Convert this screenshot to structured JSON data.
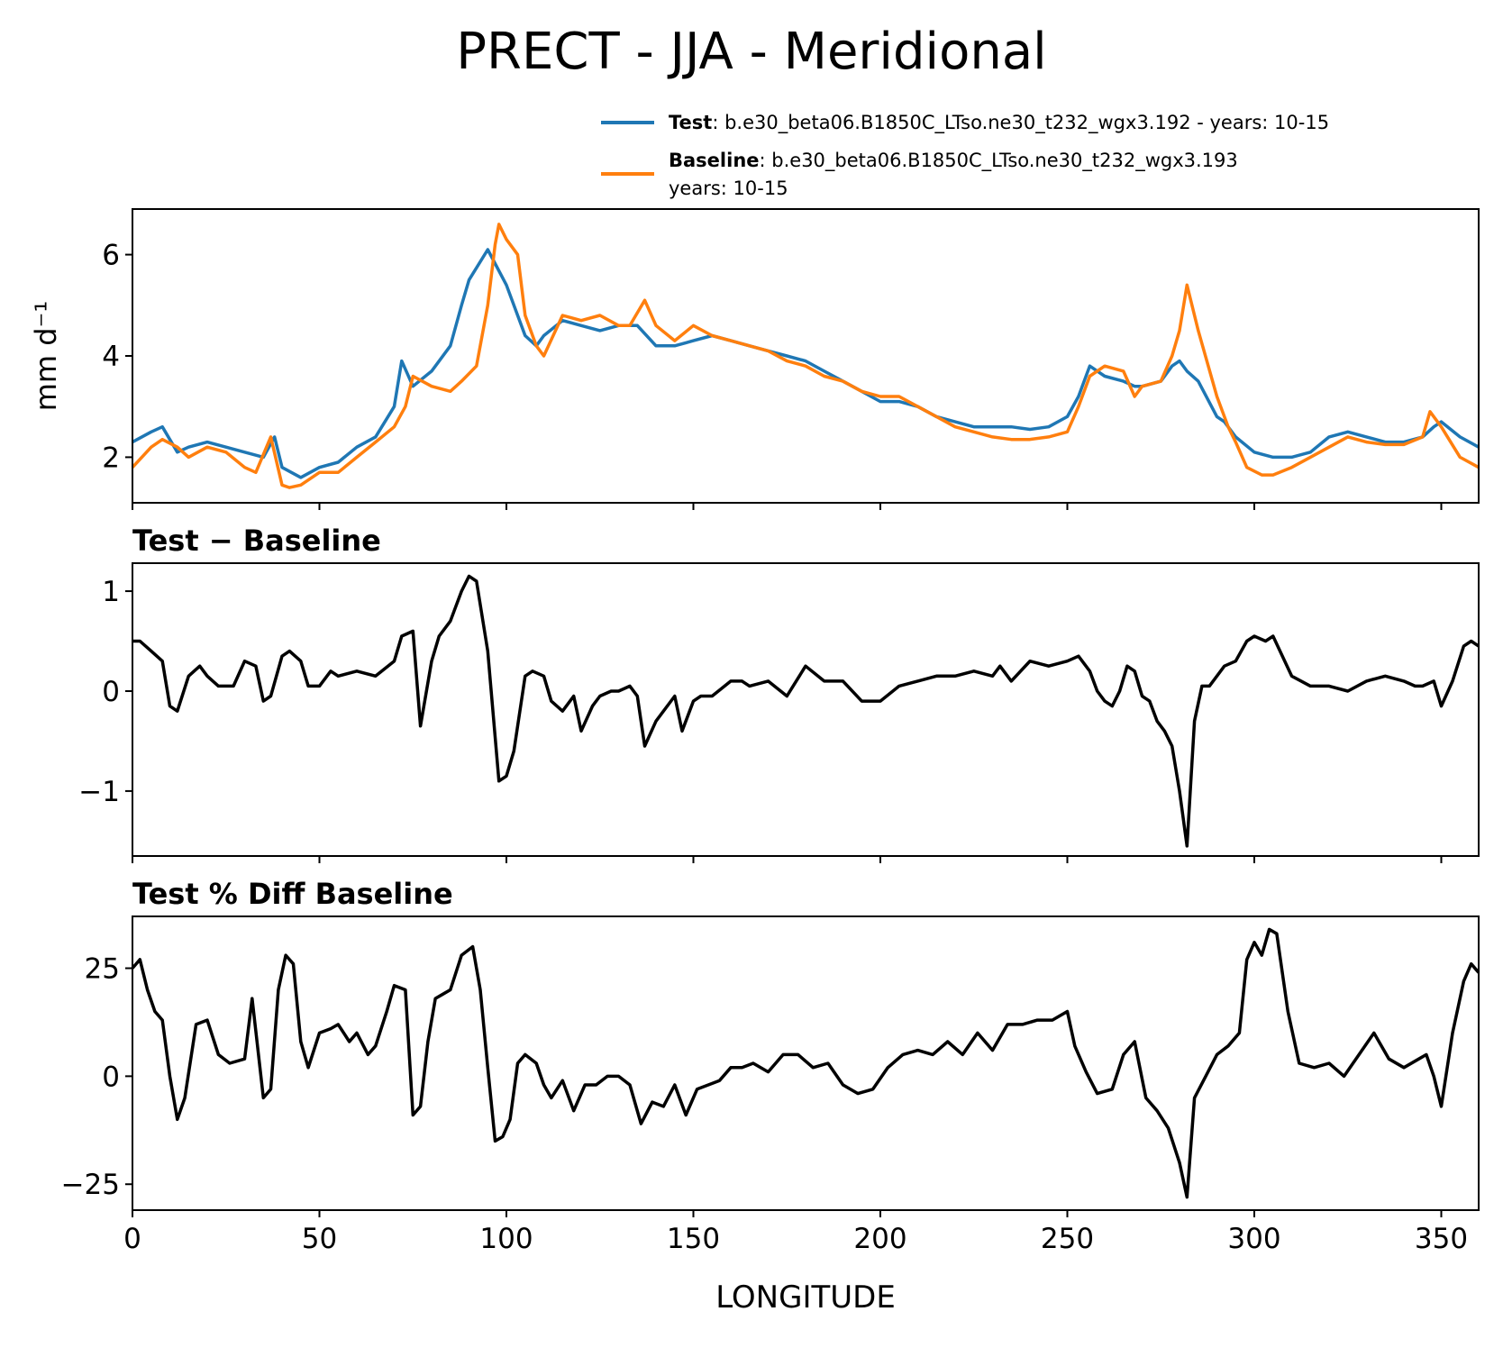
{
  "chart_data": {
    "title": "PRECT - JJA - Meridional",
    "xlabel": "LONGITUDE",
    "xlim": [
      0,
      360
    ],
    "xticks": [
      0,
      50,
      100,
      150,
      200,
      250,
      300,
      350
    ],
    "xtick_labels": [
      "0",
      "50",
      "100",
      "150",
      "200",
      "250",
      "300",
      "350"
    ],
    "colors": {
      "test": "#1f77b4",
      "baseline": "#ff7f0e",
      "diff": "#000000"
    },
    "legend": {
      "test_label": "Test",
      "test_text": ": b.e30_beta06.B1850C_LTso.ne30_t232_wgx3.192 - years: 10-15",
      "baseline_label": "Baseline",
      "baseline_text": ": b.e30_beta06.B1850C_LTso.ne30_t232_wgx3.193",
      "baseline_text2": "years: 10-15",
      "placement": "top-right above first panel"
    },
    "panels": [
      {
        "type": "line",
        "title": "",
        "ylabel": "mm d⁻¹",
        "ylim": [
          1.1,
          6.9
        ],
        "yticks": [
          2,
          4,
          6
        ],
        "ytick_labels": [
          "2",
          "4",
          "6"
        ],
        "series": [
          {
            "name": "Test",
            "x": [
              0,
              5,
              8,
              12,
              15,
              20,
              25,
              30,
              35,
              38,
              40,
              45,
              50,
              55,
              60,
              65,
              70,
              72,
              75,
              80,
              85,
              88,
              90,
              95,
              100,
              105,
              108,
              110,
              115,
              120,
              125,
              130,
              135,
              140,
              145,
              150,
              155,
              160,
              165,
              170,
              175,
              180,
              185,
              190,
              195,
              200,
              205,
              210,
              215,
              220,
              225,
              230,
              235,
              240,
              245,
              250,
              253,
              256,
              260,
              265,
              268,
              270,
              275,
              278,
              280,
              282,
              285,
              290,
              292,
              295,
              300,
              305,
              310,
              315,
              320,
              325,
              330,
              335,
              340,
              345,
              348,
              350,
              355,
              360
            ],
            "values": [
              2.3,
              2.5,
              2.6,
              2.1,
              2.2,
              2.3,
              2.2,
              2.1,
              2.0,
              2.4,
              1.8,
              1.6,
              1.8,
              1.9,
              2.2,
              2.4,
              3.0,
              3.9,
              3.4,
              3.7,
              4.2,
              5.0,
              5.5,
              6.1,
              5.4,
              4.4,
              4.2,
              4.4,
              4.7,
              4.6,
              4.5,
              4.6,
              4.6,
              4.2,
              4.2,
              4.3,
              4.4,
              4.3,
              4.2,
              4.1,
              4.0,
              3.9,
              3.7,
              3.5,
              3.3,
              3.1,
              3.1,
              3.0,
              2.8,
              2.7,
              2.6,
              2.6,
              2.6,
              2.55,
              2.6,
              2.8,
              3.2,
              3.8,
              3.6,
              3.5,
              3.4,
              3.4,
              3.5,
              3.8,
              3.9,
              3.7,
              3.5,
              2.8,
              2.7,
              2.4,
              2.1,
              2.0,
              2.0,
              2.1,
              2.4,
              2.5,
              2.4,
              2.3,
              2.3,
              2.4,
              2.6,
              2.7,
              2.4,
              2.2
            ]
          },
          {
            "name": "Baseline",
            "x": [
              0,
              5,
              8,
              12,
              15,
              20,
              25,
              30,
              33,
              37,
              40,
              42,
              45,
              50,
              55,
              60,
              65,
              70,
              73,
              75,
              80,
              85,
              88,
              92,
              95,
              97,
              98,
              100,
              103,
              105,
              108,
              110,
              115,
              120,
              125,
              130,
              133,
              137,
              140,
              145,
              150,
              155,
              160,
              165,
              170,
              175,
              180,
              185,
              190,
              195,
              200,
              205,
              210,
              215,
              220,
              225,
              230,
              235,
              240,
              245,
              250,
              253,
              256,
              260,
              265,
              268,
              270,
              275,
              278,
              280,
              282,
              285,
              290,
              293,
              295,
              298,
              302,
              305,
              310,
              315,
              320,
              325,
              330,
              335,
              340,
              345,
              347,
              350,
              355,
              360
            ],
            "values": [
              1.8,
              2.2,
              2.35,
              2.2,
              2.0,
              2.2,
              2.1,
              1.8,
              1.7,
              2.4,
              1.45,
              1.4,
              1.45,
              1.7,
              1.7,
              2.0,
              2.3,
              2.6,
              3.0,
              3.6,
              3.4,
              3.3,
              3.5,
              3.8,
              5.0,
              6.2,
              6.6,
              6.3,
              6.0,
              4.8,
              4.2,
              4.0,
              4.8,
              4.7,
              4.8,
              4.6,
              4.6,
              5.1,
              4.6,
              4.3,
              4.6,
              4.4,
              4.3,
              4.2,
              4.1,
              3.9,
              3.8,
              3.6,
              3.5,
              3.3,
              3.2,
              3.2,
              3.0,
              2.8,
              2.6,
              2.5,
              2.4,
              2.35,
              2.35,
              2.4,
              2.5,
              3.0,
              3.6,
              3.8,
              3.7,
              3.2,
              3.4,
              3.5,
              4.0,
              4.5,
              5.4,
              4.5,
              3.2,
              2.6,
              2.3,
              1.8,
              1.65,
              1.65,
              1.8,
              2.0,
              2.2,
              2.4,
              2.3,
              2.25,
              2.25,
              2.4,
              2.9,
              2.6,
              2.0,
              1.8
            ]
          }
        ]
      },
      {
        "type": "line",
        "title": "Test − Baseline",
        "ylabel": "",
        "ylim": [
          -1.65,
          1.28
        ],
        "yticks": [
          -1,
          0,
          1
        ],
        "ytick_labels": [
          "−1",
          "0",
          "1"
        ],
        "series": [
          {
            "name": "Test − Baseline",
            "x": [
              0,
              2,
              5,
              8,
              10,
              12,
              15,
              18,
              20,
              23,
              27,
              30,
              33,
              35,
              37,
              40,
              42,
              45,
              47,
              50,
              53,
              55,
              60,
              65,
              70,
              72,
              75,
              77,
              80,
              82,
              85,
              88,
              90,
              92,
              95,
              98,
              100,
              102,
              105,
              107,
              110,
              112,
              115,
              118,
              120,
              123,
              125,
              128,
              130,
              133,
              135,
              137,
              140,
              145,
              147,
              150,
              152,
              155,
              160,
              163,
              165,
              170,
              175,
              180,
              185,
              190,
              195,
              200,
              205,
              210,
              215,
              220,
              225,
              230,
              232,
              235,
              240,
              245,
              250,
              253,
              256,
              258,
              260,
              262,
              264,
              266,
              268,
              270,
              272,
              274,
              276,
              278,
              280,
              282,
              284,
              286,
              288,
              290,
              292,
              295,
              298,
              300,
              303,
              305,
              310,
              315,
              320,
              325,
              330,
              335,
              340,
              343,
              345,
              348,
              350,
              353,
              356,
              358,
              360
            ],
            "values": [
              0.5,
              0.5,
              0.4,
              0.3,
              -0.15,
              -0.2,
              0.15,
              0.25,
              0.15,
              0.05,
              0.05,
              0.3,
              0.25,
              -0.1,
              -0.05,
              0.35,
              0.4,
              0.3,
              0.05,
              0.05,
              0.2,
              0.15,
              0.2,
              0.15,
              0.3,
              0.55,
              0.6,
              -0.35,
              0.3,
              0.55,
              0.7,
              1.0,
              1.15,
              1.1,
              0.4,
              -0.9,
              -0.85,
              -0.6,
              0.15,
              0.2,
              0.15,
              -0.1,
              -0.2,
              -0.05,
              -0.4,
              -0.15,
              -0.05,
              0.0,
              0.0,
              0.05,
              -0.05,
              -0.55,
              -0.3,
              -0.05,
              -0.4,
              -0.1,
              -0.05,
              -0.05,
              0.1,
              0.1,
              0.05,
              0.1,
              -0.05,
              0.25,
              0.1,
              0.1,
              -0.1,
              -0.1,
              0.05,
              0.1,
              0.15,
              0.15,
              0.2,
              0.15,
              0.25,
              0.1,
              0.3,
              0.25,
              0.3,
              0.35,
              0.2,
              0.0,
              -0.1,
              -0.15,
              0.0,
              0.25,
              0.2,
              -0.05,
              -0.1,
              -0.3,
              -0.4,
              -0.55,
              -1.0,
              -1.55,
              -0.3,
              0.05,
              0.05,
              0.15,
              0.25,
              0.3,
              0.5,
              0.55,
              0.5,
              0.55,
              0.15,
              0.05,
              0.05,
              0.0,
              0.1,
              0.15,
              0.1,
              0.05,
              0.05,
              0.1,
              -0.15,
              0.1,
              0.45,
              0.5,
              0.45
            ]
          }
        ]
      },
      {
        "type": "line",
        "title": "Test % Diff Baseline",
        "ylabel": "",
        "ylim": [
          -31,
          37
        ],
        "yticks": [
          -25,
          0,
          25
        ],
        "ytick_labels": [
          "−25",
          "0",
          "25"
        ],
        "series": [
          {
            "name": "Test % Diff Baseline",
            "x": [
              0,
              2,
              4,
              6,
              8,
              10,
              12,
              14,
              17,
              20,
              23,
              26,
              30,
              32,
              35,
              37,
              39,
              41,
              43,
              45,
              47,
              50,
              53,
              55,
              58,
              60,
              63,
              65,
              68,
              70,
              73,
              75,
              77,
              79,
              81,
              83,
              85,
              88,
              91,
              93,
              95,
              97,
              99,
              101,
              103,
              105,
              108,
              110,
              112,
              115,
              118,
              121,
              124,
              127,
              130,
              133,
              136,
              139,
              142,
              145,
              148,
              151,
              154,
              157,
              160,
              163,
              166,
              170,
              174,
              178,
              182,
              186,
              190,
              194,
              198,
              202,
              206,
              210,
              214,
              218,
              222,
              226,
              230,
              234,
              238,
              242,
              246,
              250,
              252,
              255,
              258,
              262,
              265,
              268,
              271,
              274,
              277,
              280,
              282,
              284,
              287,
              290,
              293,
              296,
              298,
              300,
              302,
              304,
              306,
              309,
              312,
              316,
              320,
              324,
              328,
              332,
              336,
              340,
              344,
              346,
              348,
              350,
              353,
              356,
              358,
              360
            ],
            "values": [
              25,
              27,
              20,
              15,
              13,
              0,
              -10,
              -5,
              12,
              13,
              5,
              3,
              4,
              18,
              -5,
              -3,
              20,
              28,
              26,
              8,
              2,
              10,
              11,
              12,
              8,
              10,
              5,
              7,
              15,
              21,
              20,
              -9,
              -7,
              8,
              18,
              19,
              20,
              28,
              30,
              20,
              2,
              -15,
              -14,
              -10,
              3,
              5,
              3,
              -2,
              -5,
              -1,
              -8,
              -2,
              -2,
              0,
              0,
              -2,
              -11,
              -6,
              -7,
              -2,
              -9,
              -3,
              -2,
              -1,
              2,
              2,
              3,
              1,
              5,
              5,
              2,
              3,
              -2,
              -4,
              -3,
              2,
              5,
              6,
              5,
              8,
              5,
              10,
              6,
              12,
              12,
              13,
              13,
              15,
              7,
              1,
              -4,
              -3,
              5,
              8,
              -5,
              -8,
              -12,
              -20,
              -28,
              -5,
              0,
              5,
              7,
              10,
              27,
              31,
              28,
              34,
              33,
              15,
              3,
              2,
              3,
              0,
              5,
              10,
              4,
              2,
              4,
              5,
              0,
              -7,
              10,
              22,
              26,
              24
            ]
          }
        ]
      }
    ]
  }
}
